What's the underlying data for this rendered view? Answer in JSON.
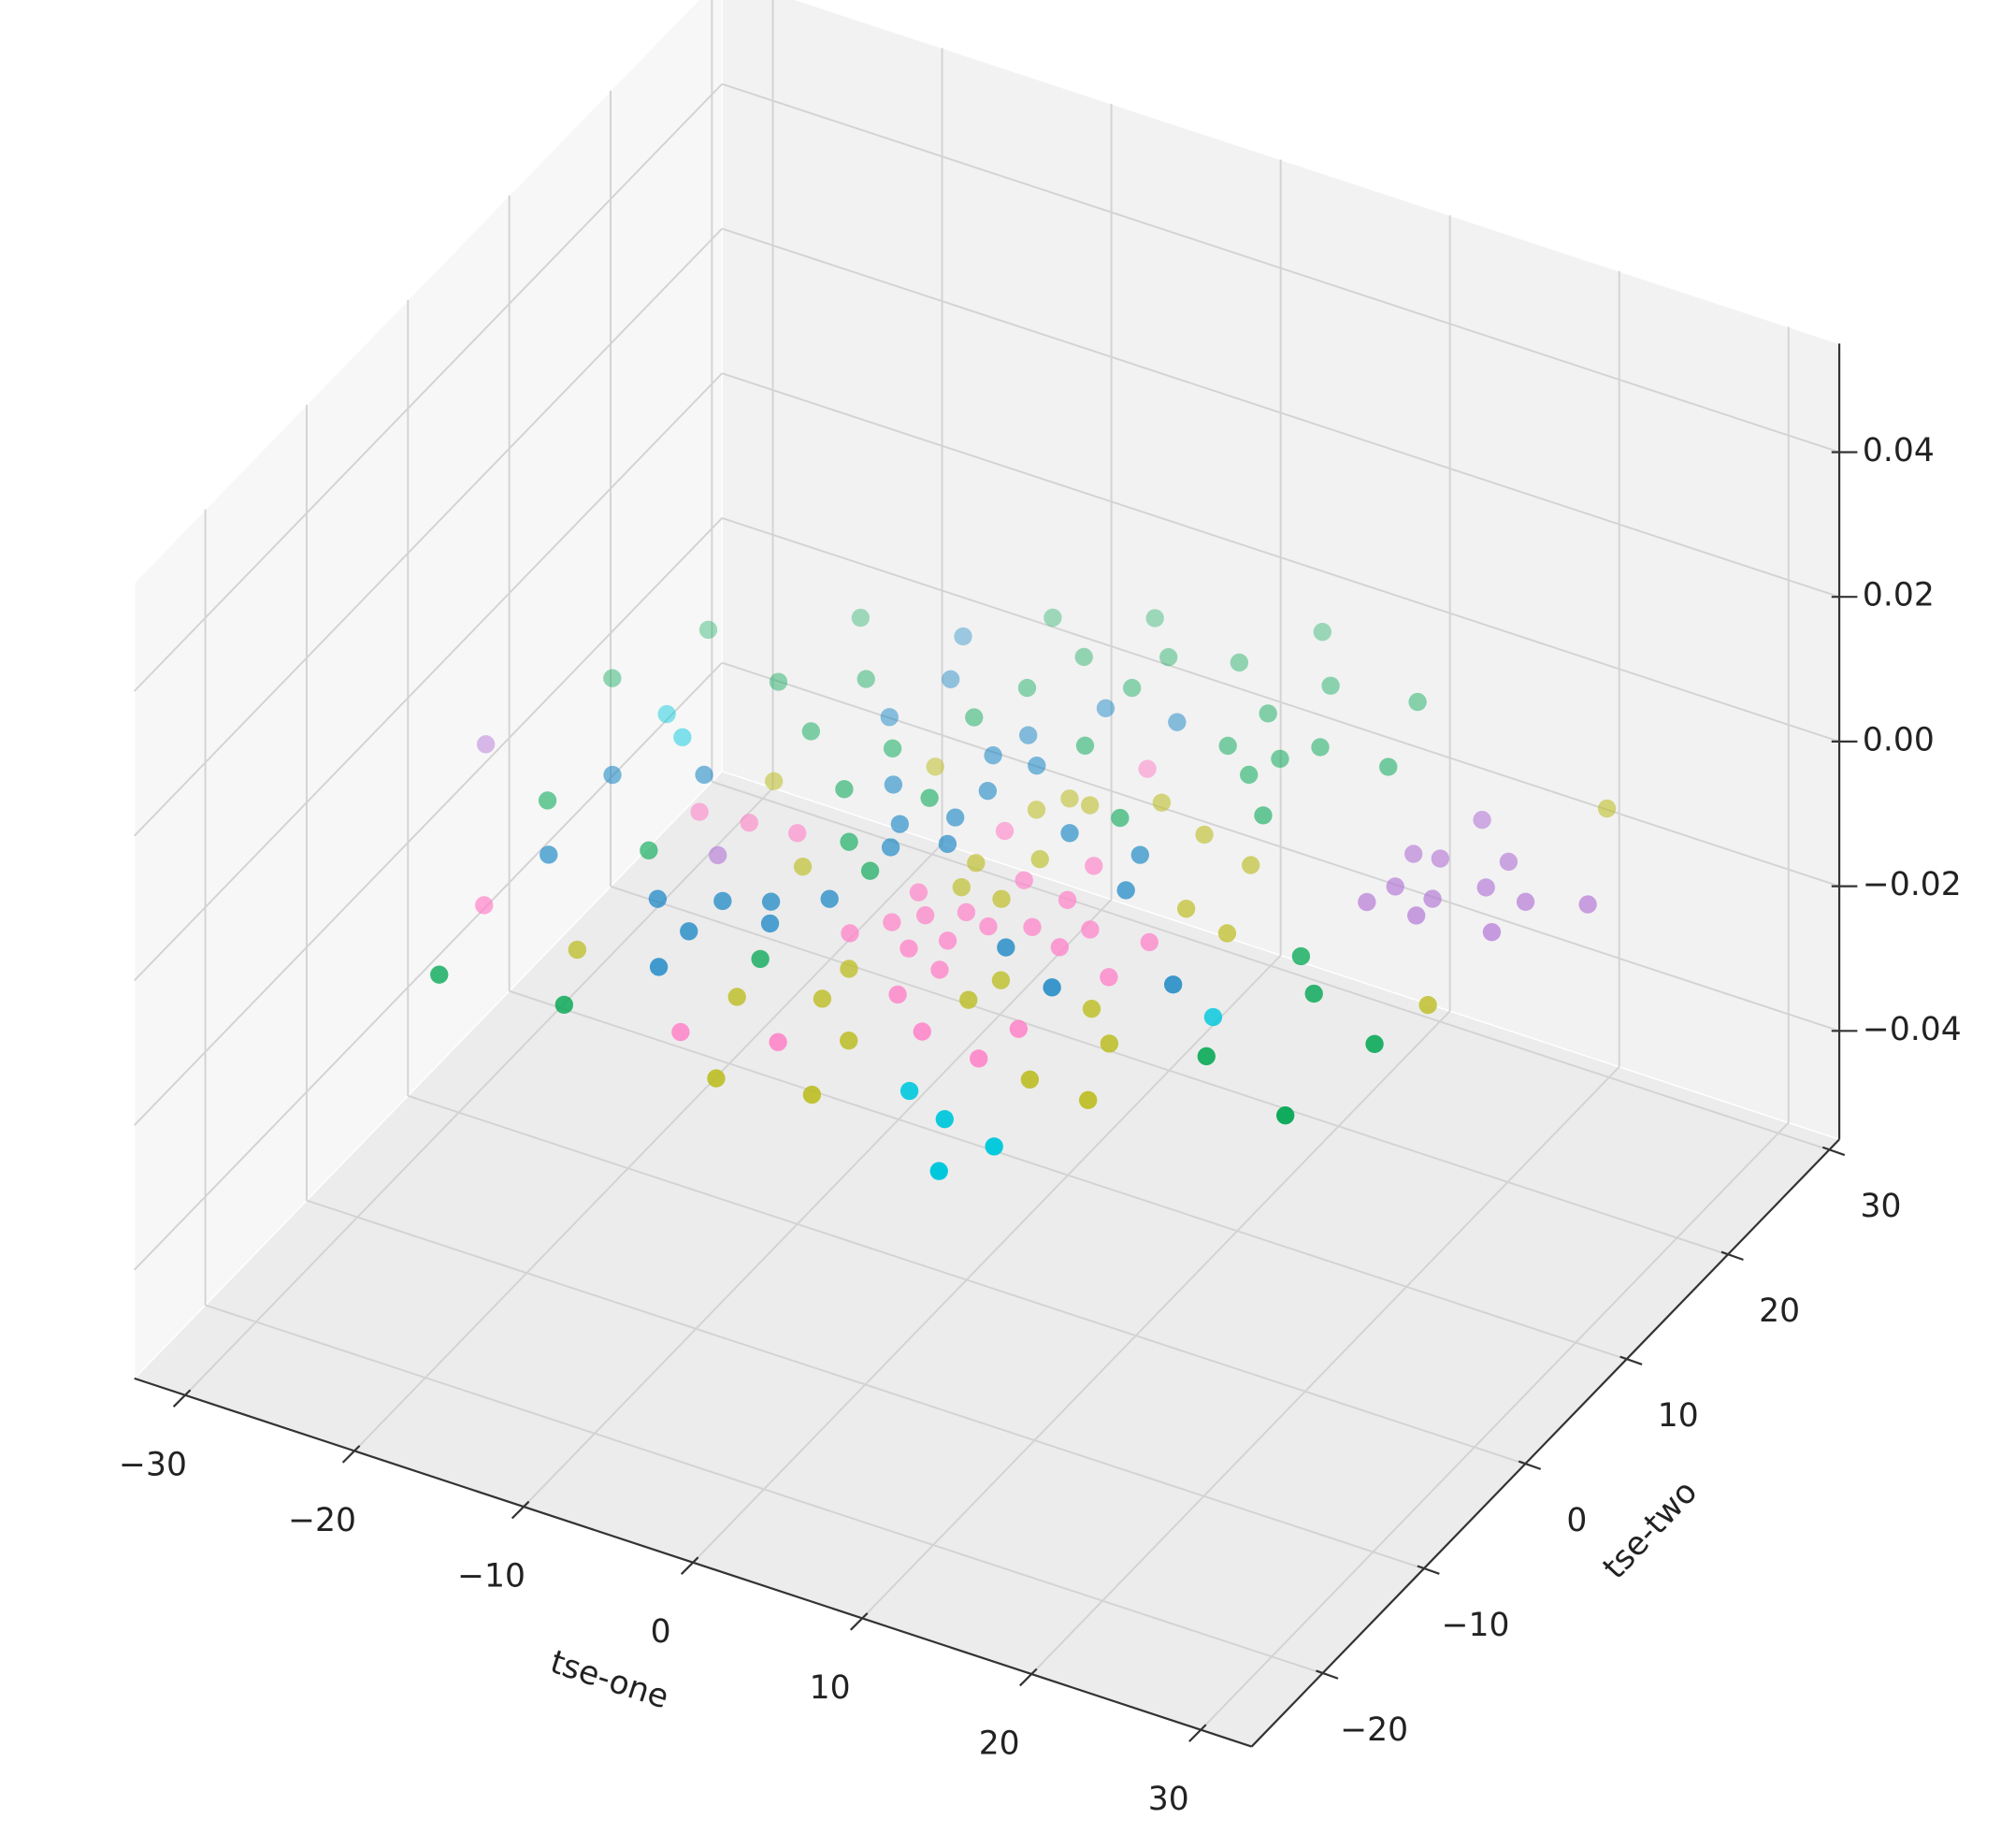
{
  "chart_data": {
    "type": "scatter3d",
    "xlabel": "tse-one",
    "ylabel": "tse-two",
    "xlim": [
      -33,
      33
    ],
    "ylim": [
      -27,
      31
    ],
    "zlim": [
      -0.055,
      0.055
    ],
    "xticks": [
      {
        "value": -30,
        "label": "−30"
      },
      {
        "value": -20,
        "label": "−20"
      },
      {
        "value": -10,
        "label": "−10"
      },
      0,
      10,
      20,
      30
    ],
    "yticks": [
      {
        "value": -20,
        "label": "−20"
      },
      {
        "value": -10,
        "label": "−10"
      },
      0,
      10,
      20,
      30
    ],
    "zticks": [
      {
        "value": -0.04,
        "label": "−0.04"
      },
      {
        "value": -0.02,
        "label": "−0.02"
      },
      {
        "value": 0,
        "label": "0.00"
      },
      0.02,
      0.04
    ],
    "grid": true,
    "depthshade": true,
    "series": [
      {
        "color": "#00a651",
        "x": [
          -22.5,
          -16.2,
          -7.6,
          -3.0,
          5.1,
          -24.7,
          -17.1,
          -13.3,
          -4.5,
          -0.7,
          2.7,
          7.8,
          -5.7,
          -1.0,
          12.4,
          -6.8,
          6.2,
          -13.5,
          -9.1,
          -0.6,
          5.8,
          10.0,
          8.0,
          8.7,
          13.9,
          -9.5,
          -5.3,
          4.1,
          10.4,
          -22.3,
          -15.6,
          -7.0,
          -4.8,
          -5.9,
          -19.6,
          -12.7,
          18.2,
          20.4,
          18.3,
          25.3,
          24.4
        ],
        "y": [
          12.1,
          16.6,
          21.2,
          23.6,
          26.6,
          6.3,
          10.0,
          12.3,
          19.1,
          21.1,
          22.4,
          22.9,
          15.5,
          18.0,
          23.8,
          12.1,
          19.4,
          7.2,
          7.9,
          12.7,
          16.1,
          18.2,
          14.5,
          16.4,
          18.4,
          3.8,
          5.2,
          8.3,
          11.9,
          -4.1,
          -5.3,
          0.1,
          -1.5,
          -10.5,
          -19.3,
          -18.5,
          2.6,
          0.2,
          -6.9,
          -2.0,
          -9.3
        ],
        "z": [
          0,
          0,
          0,
          0,
          0,
          0,
          0,
          0,
          0,
          0,
          0,
          0,
          0,
          0,
          0,
          0,
          0,
          0,
          0,
          0,
          0,
          0,
          0,
          0,
          0,
          0,
          0,
          0,
          0,
          0,
          0,
          0,
          0,
          0,
          0,
          0,
          0,
          0,
          0,
          0,
          0
        ]
      },
      {
        "color": "#0a7fc2",
        "x": [
          -10.8,
          -9.5,
          -1.3,
          2.5,
          -10.6,
          -3.6,
          -4.3,
          -1.9,
          -16.4,
          -20.5,
          -7.5,
          -3.0,
          -5.5,
          -3.3,
          2.5,
          -19.9,
          -4.9,
          -2.5,
          6.6,
          -13.1,
          -10.1,
          -7.9,
          -5.4,
          7.5,
          -7.0,
          -10.3,
          4.6,
          -10.1,
          8.4,
          13.7
        ],
        "y": [
          17.7,
          14.3,
          15.9,
          16.6,
          10.1,
          12.1,
          9.8,
          10.1,
          1.5,
          -0.7,
          5.3,
          7.1,
          2.6,
          4.4,
          6.0,
          -8.0,
          0.7,
          2.3,
          6.1,
          -8.6,
          -7.2,
          -6.1,
          -4.5,
          3.2,
          -7.7,
          -10.2,
          -3.8,
          -13.5,
          -5.6,
          -2.5
        ],
        "z": [
          0,
          0,
          0,
          0,
          0,
          0,
          0,
          0,
          0,
          0,
          0,
          0,
          0,
          0,
          0,
          0,
          0,
          0,
          0,
          0,
          0,
          0,
          0,
          0,
          0,
          0,
          0,
          0,
          0,
          0
        ]
      },
      {
        "color": "#00c8dc",
        "x": [
          -20.7,
          -19.0,
          16.9,
          6.5,
          9.3,
          12.7,
          11.3
        ],
        "y": [
          5.0,
          3.7,
          -3.9,
          -16.5,
          -17.7,
          -18.5,
          -21.6
        ],
        "z": [
          0,
          0,
          0,
          0,
          0,
          0,
          0
        ]
      },
      {
        "color": "#b477d6",
        "x": [
          -27.5,
          -12.3,
          20.4,
          18.8,
          20.2,
          23.4,
          19.4,
          23.5,
          18.8,
          21.6,
          25.9,
          28.8,
          21.6,
          25.7
        ],
        "y": [
          -1.5,
          -4.0,
          16.8,
          12.7,
          13.0,
          14.4,
          9.9,
          12.0,
          8.1,
          9.9,
          11.9,
          13.2,
          8.3,
          8.9
        ],
        "z": [
          0,
          0,
          0,
          0,
          0,
          0,
          0,
          0,
          0,
          0,
          0,
          0,
          0,
          0
        ]
      },
      {
        "color": "#ff80c8",
        "x": [
          3.2,
          -15.0,
          -12.3,
          -9.7,
          -0.5,
          5.0,
          2.5,
          -20.6,
          -1.7,
          5.3,
          1.3,
          -0.4,
          2.9,
          4.9,
          7.6,
          -3.0,
          -1.6,
          1.7,
          10.8,
          0.3,
          7.0,
          2.6,
          10.5,
          1.8,
          8.7,
          4.5,
          -6.3,
          -1.5,
          8.2
        ],
        "y": [
          12.5,
          -1.3,
          -0.9,
          -0.5,
          4.6,
          4.2,
          1.5,
          -13.2,
          -1.9,
          1.1,
          -2.2,
          -3.4,
          -2.7,
          -1.7,
          -0.5,
          -6.5,
          -4.7,
          -4.7,
          0.0,
          -6.2,
          -2.5,
          -7.0,
          -3.5,
          -9.8,
          -9.4,
          -11.9,
          -17.7,
          -16.1,
          -12.5
        ],
        "z": [
          0,
          0,
          0,
          0,
          0,
          0,
          0,
          0,
          0,
          0,
          0,
          0,
          0,
          0,
          0,
          0,
          0,
          0,
          0,
          0,
          0,
          0,
          0,
          0,
          0,
          0,
          0,
          0,
          0
        ]
      },
      {
        "color": "#bcbd22",
        "x": [
          -13.0,
          -6.4,
          1.0,
          2.2,
          0.0,
          5.3,
          8.6,
          12.0,
          -8.0,
          -0.4,
          2.3,
          0.0,
          2.3,
          11.0,
          13.9,
          -14.5,
          -1.5,
          5.8,
          -5.3,
          -1.4,
          5.2,
          11.1,
          26.0,
          25.5,
          1.6,
          13.4,
          -2.7,
          2.3,
          11.4,
          14.9
        ],
        "y": [
          2.7,
          7.6,
          8.5,
          8.5,
          6.9,
          10.4,
          9.1,
          8.0,
          -2.8,
          1.6,
          3.4,
          -0.5,
          -0.4,
          3.3,
          2.5,
          -14.2,
          -9.1,
          -6.3,
          -13.8,
          -11.9,
          -8.5,
          -6.2,
          2.1,
          20.6,
          -14.3,
          -8.3,
          -20.2,
          -19.1,
          -12.8,
          -12.9
        ],
        "z": [
          0,
          0,
          0,
          0,
          0,
          0,
          0,
          0,
          0,
          0,
          0,
          0,
          0,
          0,
          0,
          0,
          0,
          0,
          0,
          0,
          0,
          0,
          0,
          0,
          0,
          0,
          0,
          0,
          0,
          0
        ]
      }
    ]
  }
}
